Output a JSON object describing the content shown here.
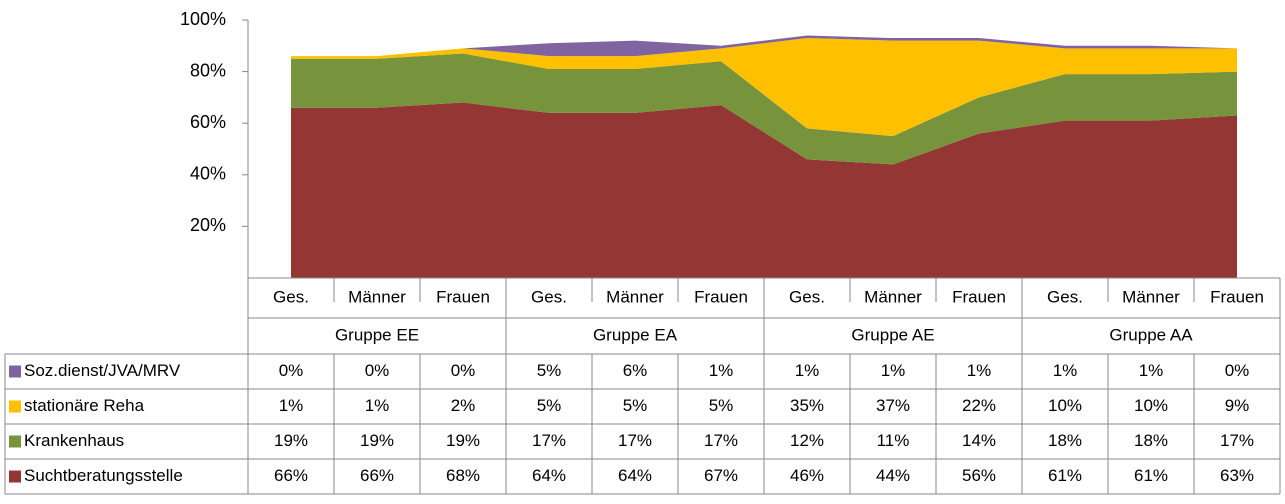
{
  "chart_data": {
    "type": "stacked_area",
    "categories": [
      "Ges.",
      "Männer",
      "Frauen",
      "Ges.",
      "Männer",
      "Frauen",
      "Ges.",
      "Männer",
      "Frauen",
      "Ges.",
      "Männer",
      "Frauen"
    ],
    "groups": [
      "Gruppe EE",
      "Gruppe EA",
      "Gruppe AE",
      "Gruppe AA"
    ],
    "ylim": [
      0,
      100
    ],
    "yticks": [
      {
        "value": 20,
        "label": "20%"
      },
      {
        "value": 40,
        "label": "40%"
      },
      {
        "value": 60,
        "label": "60%"
      },
      {
        "value": 80,
        "label": "80%"
      },
      {
        "value": 100,
        "label": "100%"
      }
    ],
    "series": [
      {
        "name": "Suchtberatungsstelle",
        "color": "#943634",
        "values": [
          66,
          66,
          68,
          64,
          64,
          67,
          46,
          44,
          56,
          61,
          61,
          63
        ],
        "value_labels": [
          "66%",
          "66%",
          "68%",
          "64%",
          "64%",
          "67%",
          "46%",
          "44%",
          "56%",
          "61%",
          "61%",
          "63%"
        ]
      },
      {
        "name": "Krankenhaus",
        "color": "#77933c",
        "values": [
          19,
          19,
          19,
          17,
          17,
          17,
          12,
          11,
          14,
          18,
          18,
          17
        ],
        "value_labels": [
          "19%",
          "19%",
          "19%",
          "17%",
          "17%",
          "17%",
          "12%",
          "11%",
          "14%",
          "18%",
          "18%",
          "17%"
        ]
      },
      {
        "name": "stationäre Reha",
        "color": "#ffc000",
        "values": [
          1,
          1,
          2,
          5,
          5,
          5,
          35,
          37,
          22,
          10,
          10,
          9
        ],
        "value_labels": [
          "1%",
          "1%",
          "2%",
          "5%",
          "5%",
          "5%",
          "35%",
          "37%",
          "22%",
          "10%",
          "10%",
          "9%"
        ]
      },
      {
        "name": "Soz.dienst/JVA/MRV",
        "color": "#8064a2",
        "values": [
          0,
          0,
          0,
          5,
          6,
          1,
          1,
          1,
          1,
          1,
          1,
          0
        ],
        "value_labels": [
          "0%",
          "0%",
          "0%",
          "5%",
          "6%",
          "1%",
          "1%",
          "1%",
          "1%",
          "1%",
          "1%",
          "0%"
        ]
      }
    ]
  }
}
